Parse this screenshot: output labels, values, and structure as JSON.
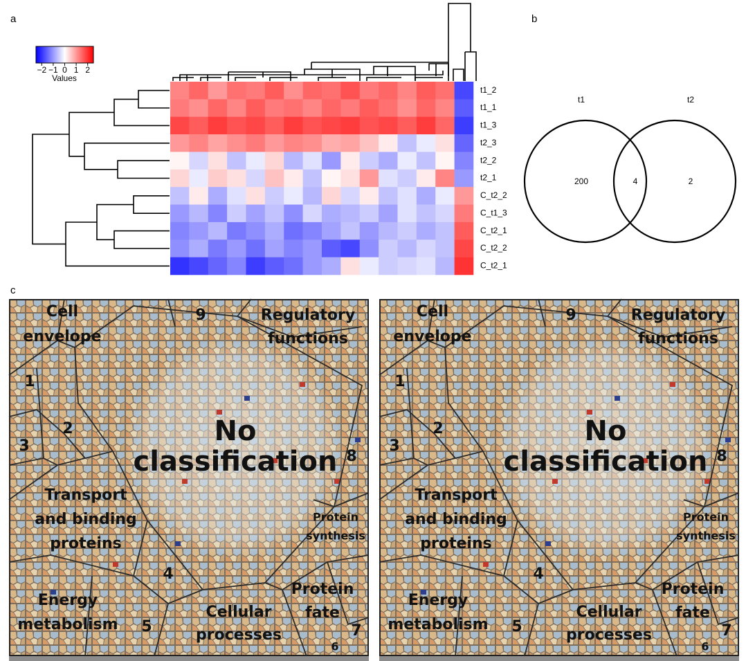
{
  "panel_labels": [
    "a",
    "b",
    "c"
  ],
  "heatmap": {
    "colorbar": {
      "title": "Values",
      "lim": [
        -2.5,
        2.5
      ],
      "ticks": [
        {
          "value": -2,
          "label": "−2"
        },
        {
          "value": -1,
          "label": "−1"
        },
        0,
        1,
        2
      ]
    },
    "rows": [
      "t1_2",
      "t1_1",
      "t1_3",
      "t2_3",
      "t2_2",
      "t2_1",
      "C_t2_2",
      "C_t1_3",
      "C_t2_1",
      "C_t2_2",
      "C_t2_1"
    ],
    "values": [
      [
        1.2,
        1.5,
        1.0,
        1.4,
        1.3,
        1.6,
        1.1,
        1.5,
        1.4,
        1.7,
        1.3,
        1.5,
        1.2,
        1.6,
        1.4,
        -1.8
      ],
      [
        1.3,
        1.1,
        1.5,
        1.2,
        1.6,
        1.3,
        1.4,
        1.2,
        1.5,
        1.3,
        1.6,
        1.4,
        1.1,
        1.5,
        1.2,
        -1.6
      ],
      [
        1.8,
        1.6,
        1.9,
        1.7,
        1.8,
        1.6,
        1.9,
        1.7,
        1.8,
        1.9,
        1.7,
        1.8,
        1.6,
        1.9,
        1.5,
        -1.9
      ],
      [
        1.0,
        1.2,
        0.9,
        1.1,
        1.3,
        1.0,
        1.2,
        1.1,
        0.8,
        0.9,
        0.6,
        0.2,
        -0.6,
        -0.2,
        0.3,
        -1.5
      ],
      [
        0.1,
        -0.4,
        0.3,
        -0.6,
        -0.2,
        0.4,
        -0.7,
        -0.3,
        -1.0,
        0.2,
        -0.5,
        -0.8,
        -0.2,
        -0.6,
        0.1,
        -1.2
      ],
      [
        0.4,
        -0.2,
        0.5,
        0.3,
        -0.4,
        0.6,
        0.2,
        -0.6,
        0.1,
        0.3,
        1.0,
        -0.3,
        -0.5,
        0.2,
        1.2,
        -1.0
      ],
      [
        -0.6,
        0.2,
        -0.8,
        -0.3,
        0.3,
        -0.5,
        -0.2,
        -0.7,
        0.4,
        -0.4,
        0.2,
        -0.6,
        -0.3,
        -0.8,
        -0.2,
        1.0
      ],
      [
        -1.0,
        -0.7,
        -1.2,
        -0.5,
        -0.9,
        -0.6,
        -1.1,
        -0.4,
        -0.8,
        -0.7,
        -0.5,
        -0.9,
        -0.3,
        -0.6,
        -0.4,
        1.3
      ],
      [
        -1.2,
        -1.0,
        -0.7,
        -1.3,
        -1.1,
        -0.8,
        -1.4,
        -1.2,
        -0.9,
        -0.6,
        -1.0,
        -0.7,
        -0.5,
        -0.8,
        -0.6,
        1.6
      ],
      [
        -1.1,
        -0.8,
        -1.3,
        -1.0,
        -1.4,
        -0.9,
        -1.2,
        -1.0,
        -1.6,
        -1.8,
        -1.1,
        -0.5,
        -0.7,
        -0.4,
        -0.6,
        1.8
      ],
      [
        -2.0,
        -1.8,
        -1.5,
        -1.2,
        -1.9,
        -1.6,
        -1.4,
        -1.0,
        -0.8,
        0.3,
        -0.2,
        -0.5,
        -0.4,
        -0.3,
        -0.7,
        2.0
      ]
    ]
  },
  "venn": {
    "sets": [
      "t1",
      "t2"
    ],
    "counts": {
      "t1_only": 200,
      "both": 4,
      "t2_only": 2
    }
  },
  "treemaps": [
    {
      "labels": [
        {
          "lines": [
            "Cell",
            "envelope"
          ]
        },
        {
          "lines": [
            "9"
          ]
        },
        {
          "lines": [
            "Regulatory",
            "functions"
          ]
        },
        {
          "lines": [
            "1"
          ]
        },
        {
          "lines": [
            "2"
          ]
        },
        {
          "lines": [
            "3"
          ]
        },
        {
          "lines": [
            "No",
            "classification"
          ]
        },
        {
          "lines": [
            "8"
          ]
        },
        {
          "lines": [
            "Transport",
            "and binding",
            "proteins"
          ]
        },
        {
          "lines": [
            "Protein",
            "synthesis"
          ]
        },
        {
          "lines": [
            "4"
          ]
        },
        {
          "lines": [
            "Protein",
            "fate"
          ]
        },
        {
          "lines": [
            "Energy",
            "metabolism"
          ]
        },
        {
          "lines": [
            "5"
          ]
        },
        {
          "lines": [
            "Cellular",
            "processes"
          ]
        },
        {
          "lines": [
            "7"
          ]
        },
        {
          "lines": [
            "6"
          ]
        }
      ]
    },
    {
      "labels": [
        {
          "lines": [
            "Cell",
            "envelope"
          ]
        },
        {
          "lines": [
            "9"
          ]
        },
        {
          "lines": [
            "Regulatory",
            "functions"
          ]
        },
        {
          "lines": [
            "1"
          ]
        },
        {
          "lines": [
            "2"
          ]
        },
        {
          "lines": [
            "3"
          ]
        },
        {
          "lines": [
            "No",
            "classification"
          ]
        },
        {
          "lines": [
            "8"
          ]
        },
        {
          "lines": [
            "Transport",
            "and binding",
            "proteins"
          ]
        },
        {
          "lines": [
            "Protein",
            "synthesis"
          ]
        },
        {
          "lines": [
            "4"
          ]
        },
        {
          "lines": [
            "Protein",
            "fate"
          ]
        },
        {
          "lines": [
            "Energy",
            "metabolism"
          ]
        },
        {
          "lines": [
            "5"
          ]
        },
        {
          "lines": [
            "Cellular",
            "processes"
          ]
        },
        {
          "lines": [
            "7"
          ]
        },
        {
          "lines": [
            "6"
          ]
        }
      ]
    }
  ]
}
